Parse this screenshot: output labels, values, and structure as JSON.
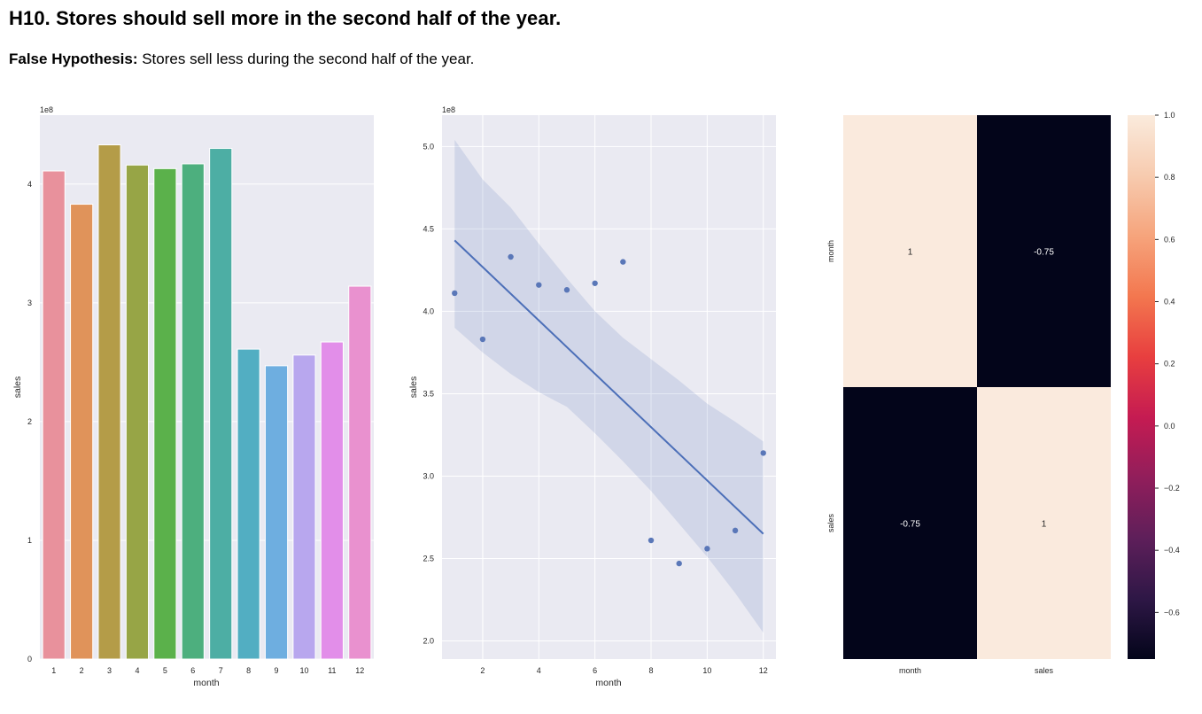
{
  "header": {
    "title": "H10. Stores should sell more in the second half of the year.",
    "hypothesis_label": "False Hypothesis:",
    "hypothesis_text": " Stores sell less during the second half of the year."
  },
  "chart_data": [
    {
      "type": "bar",
      "xlabel": "month",
      "ylabel": "sales",
      "offset_label": "1e8",
      "categories": [
        "1",
        "2",
        "3",
        "4",
        "5",
        "6",
        "7",
        "8",
        "9",
        "10",
        "11",
        "12"
      ],
      "values": [
        4.11,
        3.83,
        4.33,
        4.16,
        4.13,
        4.17,
        4.3,
        2.61,
        2.47,
        2.56,
        2.67,
        3.14
      ],
      "ylim": [
        0,
        4.58
      ],
      "yticks": [
        0,
        1,
        2,
        3,
        4
      ],
      "colors": [
        "#e8919c",
        "#e0935a",
        "#b49c48",
        "#97a546",
        "#5bb14b",
        "#4daf7e",
        "#4daea4",
        "#52aec2",
        "#6eaee0",
        "#b8a7ee",
        "#e28ee9",
        "#e991cf"
      ],
      "grid": true
    },
    {
      "type": "scatter",
      "xlabel": "month",
      "ylabel": "sales",
      "offset_label": "1e8",
      "x": [
        1,
        2,
        3,
        4,
        5,
        6,
        7,
        8,
        9,
        10,
        11,
        12
      ],
      "y": [
        4.11,
        3.83,
        4.33,
        4.16,
        4.13,
        4.17,
        4.3,
        2.61,
        2.47,
        2.56,
        2.67,
        3.14
      ],
      "xlim": [
        0.55,
        12.45
      ],
      "ylim": [
        1.89,
        5.19
      ],
      "xticks": [
        2,
        4,
        6,
        8,
        10,
        12
      ],
      "yticks": [
        "2.0",
        "2.5",
        "3.0",
        "3.5",
        "4.0",
        "4.5",
        "5.0"
      ],
      "regression": {
        "x": [
          1,
          12
        ],
        "y": [
          4.43,
          2.65
        ]
      },
      "ci_upper": [
        [
          1,
          5.04
        ],
        [
          2,
          4.8
        ],
        [
          3,
          4.63
        ],
        [
          4,
          4.41
        ],
        [
          5,
          4.2
        ],
        [
          6,
          4.0
        ],
        [
          7,
          3.84
        ],
        [
          8,
          3.71
        ],
        [
          9,
          3.58
        ],
        [
          10,
          3.44
        ],
        [
          11,
          3.33
        ],
        [
          12,
          3.21
        ]
      ],
      "ci_lower": [
        [
          1,
          3.9
        ],
        [
          2,
          3.75
        ],
        [
          3,
          3.62
        ],
        [
          4,
          3.51
        ],
        [
          5,
          3.42
        ],
        [
          6,
          3.26
        ],
        [
          7,
          3.09
        ],
        [
          8,
          2.91
        ],
        [
          9,
          2.71
        ],
        [
          10,
          2.51
        ],
        [
          11,
          2.29
        ],
        [
          12,
          2.05
        ]
      ],
      "point_color": "#5a77b8",
      "line_color": "#4c6fb8",
      "grid": true
    },
    {
      "type": "heatmap",
      "row_labels": [
        "month",
        "sales"
      ],
      "col_labels": [
        "month",
        "sales"
      ],
      "values": [
        [
          "1",
          "-0.75"
        ],
        [
          "-0.75",
          "1"
        ]
      ],
      "cell_colors": [
        [
          "#faeadd",
          "#03051a"
        ],
        [
          "#03051a",
          "#faeadd"
        ]
      ],
      "text_colors": [
        [
          "#262626",
          "#ffffff"
        ],
        [
          "#ffffff",
          "#262626"
        ]
      ],
      "colorbar_ticks": [
        "1.0",
        "0.8",
        "0.6",
        "0.4",
        "0.2",
        "0.0",
        "−0.2",
        "−0.4",
        "−0.6"
      ],
      "colorbar_range": [
        -0.75,
        1.0
      ],
      "colormap": [
        "#03051a",
        "#2e1746",
        "#5e1f5a",
        "#911e5b",
        "#c51b52",
        "#e83f3f",
        "#f3774f",
        "#f6a47c",
        "#f7cbaf",
        "#faebdd"
      ]
    }
  ]
}
